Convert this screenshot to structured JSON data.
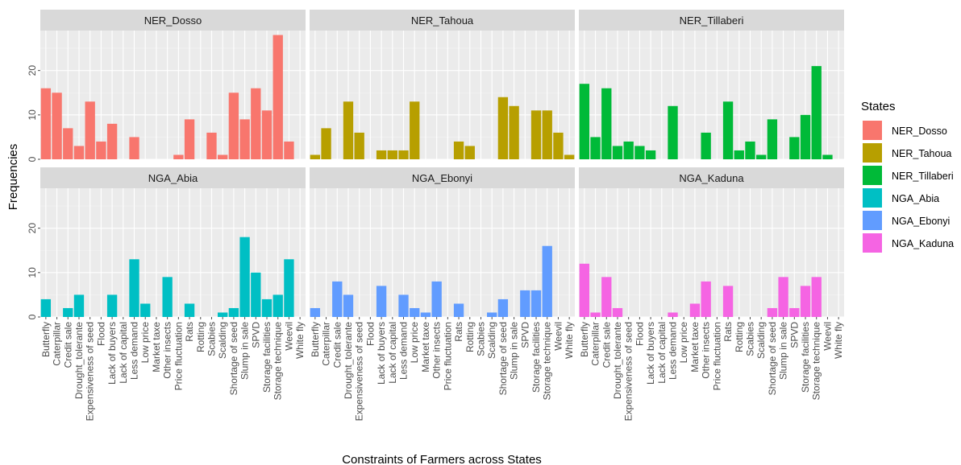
{
  "chart_data": {
    "type": "bar",
    "xlabel": "Constraints of Farmers across States",
    "ylabel": "Frequencies",
    "ylim": [
      0,
      29
    ],
    "yticks": [
      0,
      10,
      20
    ],
    "legend_title": "States",
    "legend_position": "right",
    "grid": true,
    "categories": [
      "Butterfly",
      "Caterpillar",
      "Credit sale",
      "Drought_tolerante",
      "Expensiveness of seed",
      "Flood",
      "Lack of buyers",
      "Lack of capital",
      "Less demand",
      "Low price",
      "Market taxe",
      "Other insects",
      "Price fluctuation",
      "Rats",
      "Rotting",
      "Scabies",
      "Scalding",
      "Shortage of seed",
      "Slump in sale",
      "SPVD",
      "Storage facilities",
      "Storage technique",
      "Weevil",
      "White fly"
    ],
    "series": [
      {
        "name": "NER_Dosso",
        "color": "#F8766D",
        "values": [
          16,
          15,
          7,
          3,
          13,
          4,
          8,
          0,
          5,
          0,
          0,
          0,
          1,
          9,
          0,
          6,
          1,
          15,
          9,
          16,
          11,
          28,
          4,
          0
        ]
      },
      {
        "name": "NER_Tahoua",
        "color": "#B79F00",
        "values": [
          1,
          7,
          0,
          13,
          6,
          0,
          2,
          2,
          2,
          13,
          0,
          0,
          0,
          4,
          3,
          0,
          0,
          14,
          12,
          0,
          11,
          11,
          6,
          1
        ]
      },
      {
        "name": "NER_Tillaberi",
        "color": "#00BA38",
        "values": [
          17,
          5,
          16,
          3,
          4,
          3,
          2,
          0,
          12,
          0,
          0,
          6,
          0,
          13,
          2,
          4,
          1,
          9,
          0,
          5,
          10,
          21,
          1,
          0
        ]
      },
      {
        "name": "NGA_Abia",
        "color": "#00BFC4",
        "values": [
          4,
          0,
          2,
          5,
          0,
          0,
          5,
          0,
          13,
          3,
          0,
          9,
          0,
          3,
          0,
          0,
          1,
          2,
          18,
          10,
          4,
          5,
          13,
          0
        ]
      },
      {
        "name": "NGA_Ebonyi",
        "color": "#619CFF",
        "values": [
          2,
          0,
          8,
          5,
          0,
          0,
          7,
          0,
          5,
          2,
          1,
          8,
          0,
          3,
          0,
          0,
          1,
          4,
          0,
          6,
          6,
          16,
          0,
          0
        ]
      },
      {
        "name": "NGA_Kaduna",
        "color": "#F564E3",
        "values": [
          12,
          1,
          9,
          2,
          0,
          0,
          0,
          0,
          1,
          0,
          3,
          8,
          0,
          7,
          0,
          0,
          0,
          2,
          9,
          2,
          7,
          9,
          0,
          0
        ]
      }
    ]
  }
}
